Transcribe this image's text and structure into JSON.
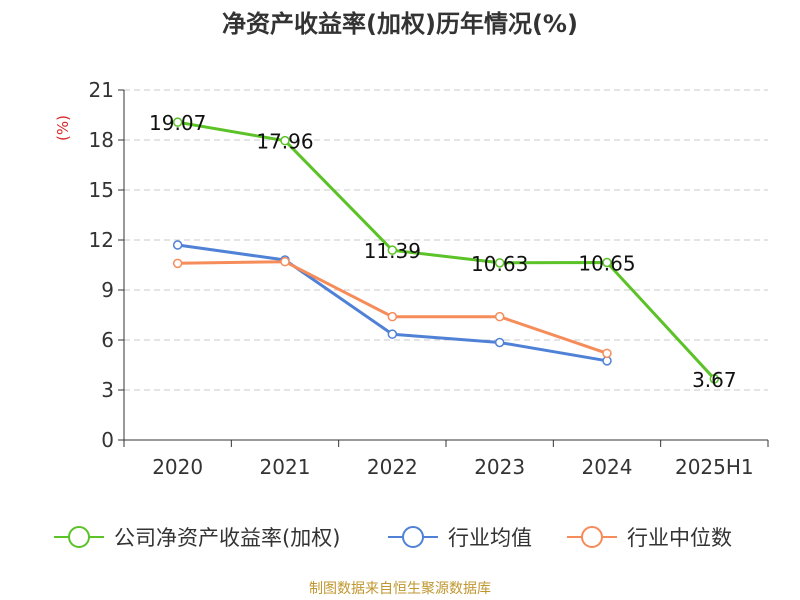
{
  "chart_data": {
    "type": "line",
    "title": "净资产收益率(加权)历年情况(%)",
    "ylabel": "(%)",
    "xlabel": "",
    "categories": [
      "2020",
      "2021",
      "2022",
      "2023",
      "2024",
      "2025H1"
    ],
    "y_ticks": [
      0,
      3,
      6,
      9,
      12,
      15,
      18,
      21
    ],
    "ylim": [
      0,
      21
    ],
    "grid": "horizontal dashed",
    "legend_position": "bottom",
    "series": [
      {
        "name": "公司净资产收益率(加权)",
        "color": "#5bc227",
        "values": [
          19.07,
          17.96,
          11.39,
          10.63,
          10.65,
          3.67
        ],
        "labels": [
          "19.07",
          "17.96",
          "11.39",
          "10.63",
          "10.65",
          "3.67"
        ]
      },
      {
        "name": "行业均值",
        "color": "#4f81d6",
        "values": [
          11.7,
          10.8,
          6.35,
          5.85,
          4.75,
          null
        ]
      },
      {
        "name": "行业中位数",
        "color": "#f58c5a",
        "values": [
          10.6,
          10.7,
          7.4,
          7.4,
          5.2,
          null
        ]
      }
    ]
  },
  "source_note": "制图数据来自恒生聚源数据库"
}
